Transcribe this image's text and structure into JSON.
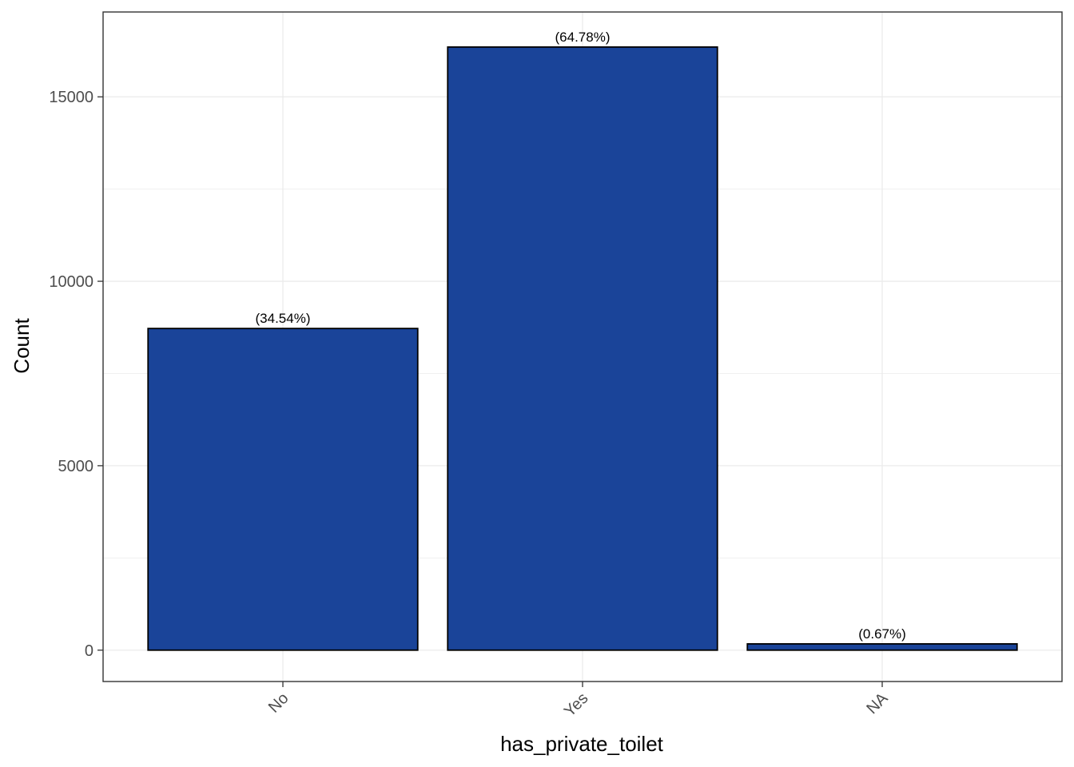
{
  "chart_data": {
    "type": "bar",
    "categories": [
      "No",
      "Yes",
      "NA"
    ],
    "values": [
      8720,
      16350,
      170
    ],
    "labels": [
      "(34.54%)",
      "(64.78%)",
      "(0.67%)"
    ],
    "xlabel": "has_private_toilet",
    "ylabel": "Count",
    "ylim": [
      -850,
      17300
    ],
    "yticks": [
      0,
      5000,
      10000,
      15000
    ],
    "ytick_labels": [
      "0",
      "5000",
      "10000",
      "15000"
    ],
    "grid": true,
    "bar_color": "#1a4499",
    "bar_edge_color": "#000000",
    "x_tick_rotation_deg": 45
  }
}
